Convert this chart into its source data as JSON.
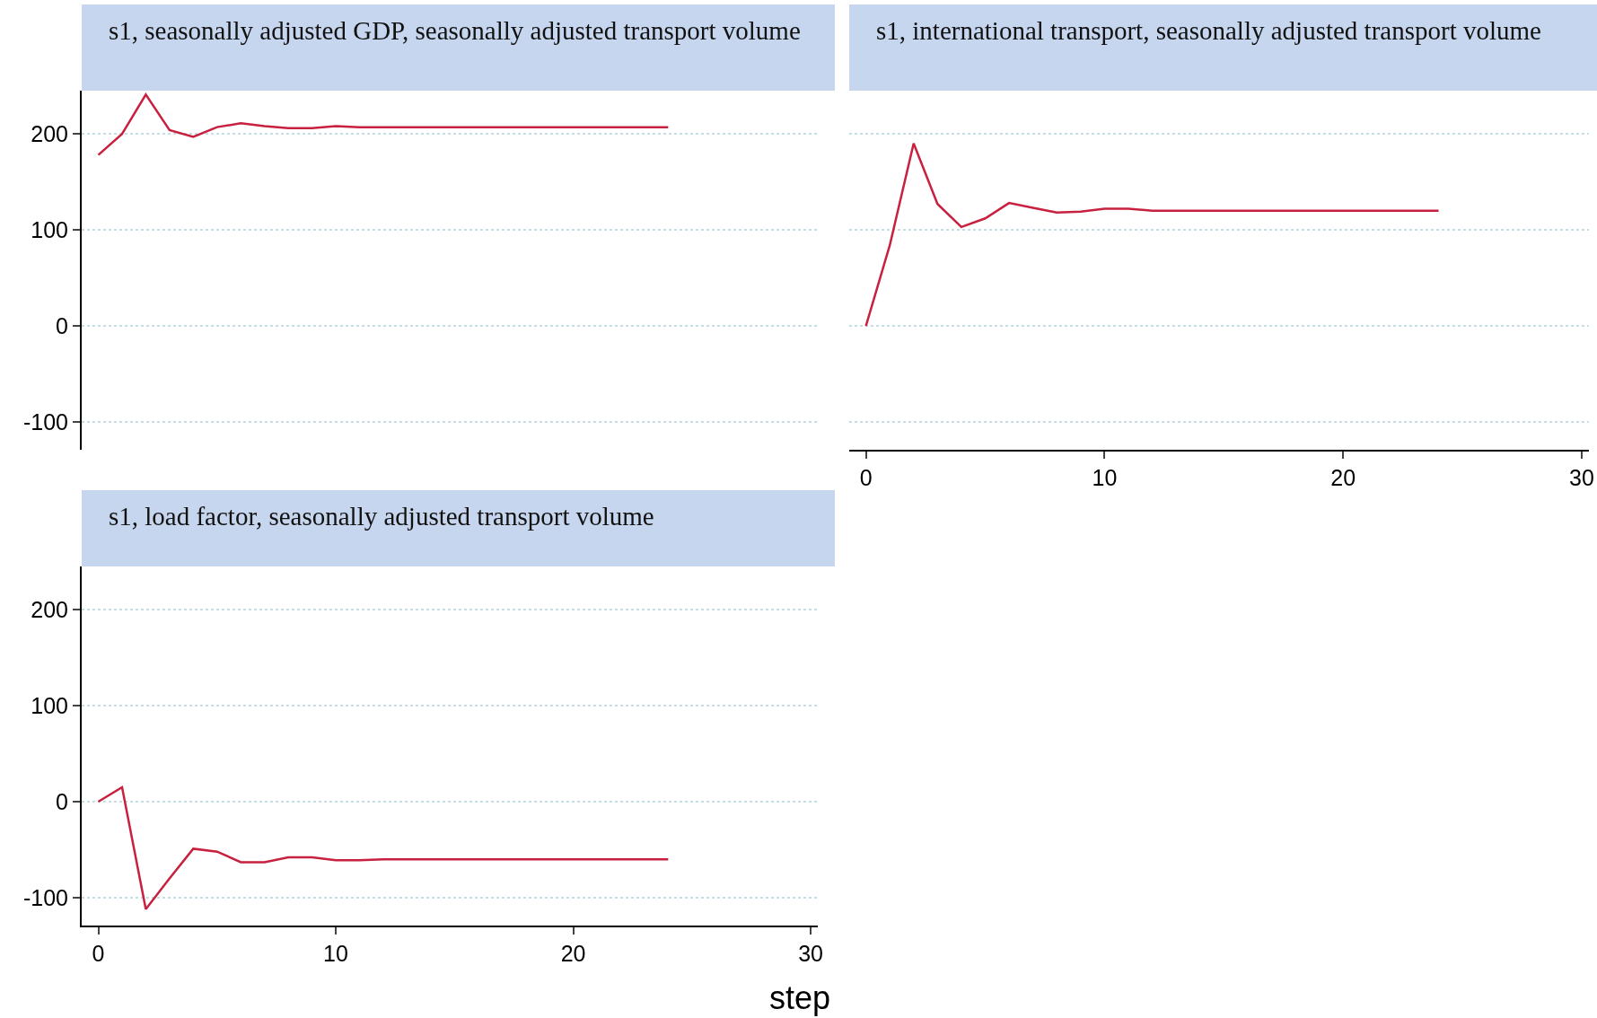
{
  "chart_data": [
    {
      "type": "line",
      "title": "s1, seasonally adjusted GDP, seasonally adjusted transport volume",
      "x": [
        0,
        1,
        2,
        3,
        4,
        5,
        6,
        7,
        8,
        9,
        10,
        11,
        12,
        13,
        14,
        15,
        16,
        17,
        18,
        19,
        20,
        21,
        22,
        23,
        24
      ],
      "series": [
        {
          "color": "#c8203f",
          "values": [
            178,
            200,
            241,
            204,
            197,
            207,
            211,
            208,
            206,
            206,
            208,
            207,
            207,
            207,
            207,
            207,
            207,
            207,
            207,
            207,
            207,
            207,
            207,
            207,
            207
          ]
        }
      ],
      "xlim": [
        -0.7,
        30.3
      ],
      "ylim": [
        -129,
        245
      ],
      "xticks": [
        0,
        10,
        20,
        30
      ],
      "yticks": [
        -100,
        0,
        100,
        200
      ],
      "grid": "y",
      "tick_labels": "y",
      "marker": "none",
      "line_style": "solid"
    },
    {
      "type": "line",
      "title": "s1, international transport, seasonally adjusted transport volume",
      "x": [
        0,
        1,
        2,
        3,
        4,
        5,
        6,
        7,
        8,
        9,
        10,
        11,
        12,
        13,
        14,
        15,
        16,
        17,
        18,
        19,
        20,
        21,
        22,
        23,
        24
      ],
      "series": [
        {
          "color": "#c8203f",
          "values": [
            0,
            84,
            190,
            127,
            103,
            112,
            128,
            123,
            118,
            119,
            122,
            122,
            120,
            120,
            120,
            120,
            120,
            120,
            120,
            120,
            120,
            120,
            120,
            120,
            120
          ]
        }
      ],
      "xlim": [
        -0.7,
        30.3
      ],
      "ylim": [
        -129,
        245
      ],
      "xticks": [
        0,
        10,
        20,
        30
      ],
      "yticks": [
        -100,
        0,
        100,
        200
      ],
      "grid": "y",
      "tick_labels": "x",
      "marker": "none",
      "line_style": "solid"
    },
    {
      "type": "line",
      "title": "s1, load factor, seasonally adjusted transport volume",
      "xlabel": "step",
      "x": [
        0,
        1,
        2,
        3,
        4,
        5,
        6,
        7,
        8,
        9,
        10,
        11,
        12,
        13,
        14,
        15,
        16,
        17,
        18,
        19,
        20,
        21,
        22,
        23,
        24
      ],
      "series": [
        {
          "color": "#c8203f",
          "values": [
            0,
            15,
            -112,
            -80,
            -49,
            -52,
            -63,
            -63,
            -58,
            -58,
            -61,
            -61,
            -60,
            -60,
            -60,
            -60,
            -60,
            -60,
            -60,
            -60,
            -60,
            -60,
            -60,
            -60,
            -60
          ]
        }
      ],
      "xlim": [
        -0.7,
        30.3
      ],
      "ylim": [
        -129,
        245
      ],
      "xticks": [
        0,
        10,
        20,
        30
      ],
      "yticks": [
        -100,
        0,
        100,
        200
      ],
      "grid": "y",
      "marker": "none",
      "line_style": "solid"
    }
  ]
}
